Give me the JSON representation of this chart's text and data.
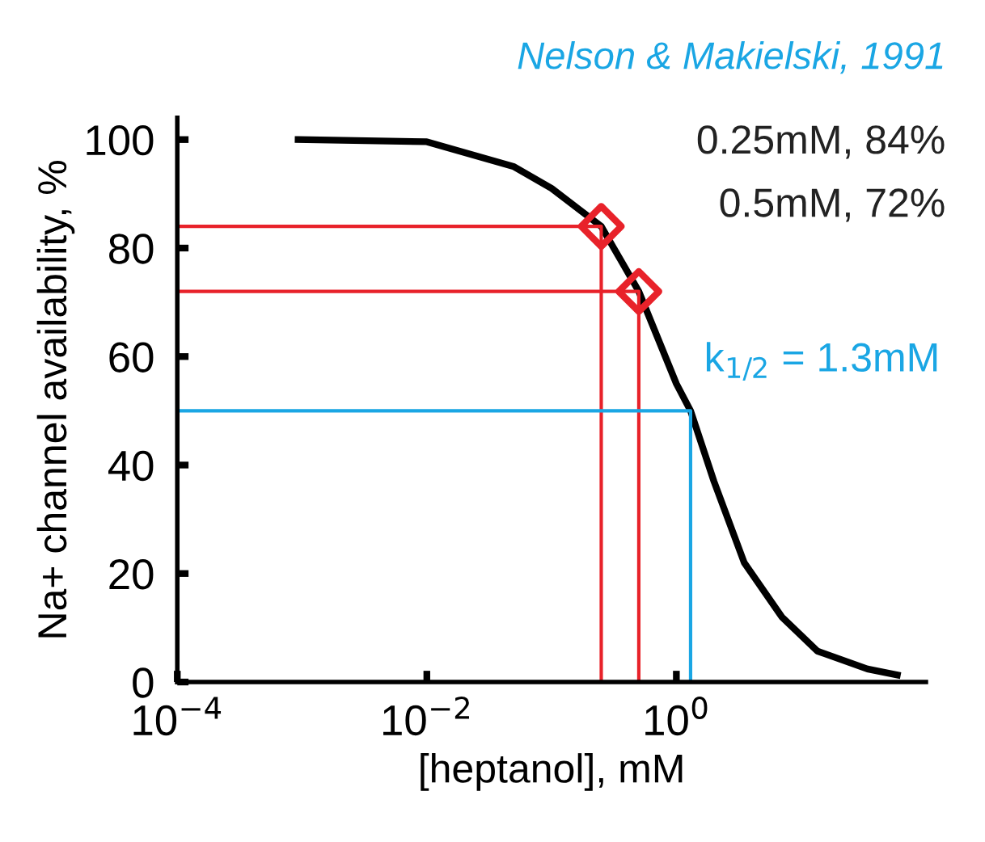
{
  "chart_data": {
    "type": "line",
    "xlabel": "[heptanol], mM",
    "ylabel": "Na+ channel availability, %",
    "log": "x",
    "xlim": [
      0.0001,
      100
    ],
    "ylim": [
      0,
      104
    ],
    "xticks": [
      {
        "value": 0.0001,
        "label": "10$^{−4}$"
      },
      {
        "value": 0.01,
        "label": "10$^{−2}$"
      },
      {
        "value": 1,
        "label": "10$^{0}$"
      }
    ],
    "yticks": [
      0,
      20,
      40,
      60,
      80,
      100
    ],
    "grid": false,
    "series": [
      {
        "color": "#000000",
        "x": [
          0.00093,
          0.01,
          0.05,
          0.1,
          0.25,
          0.5,
          1,
          1.3,
          2,
          3.5,
          7,
          13.5,
          34,
          59
        ],
        "values": [
          100,
          99.6,
          95,
          91,
          84,
          72,
          55,
          50,
          37,
          22,
          12,
          5.7,
          2.4,
          1.3
        ]
      },
      {
        "color": "#e8222a",
        "x": [
          0.25,
          0.25,
          0.0001
        ],
        "values": [
          0,
          84,
          84
        ]
      },
      {
        "color": "#e8222a",
        "x": [
          0.5,
          0.5,
          0.0001
        ],
        "values": [
          0,
          72,
          72
        ]
      },
      {
        "color": "#1aa6e4",
        "x": [
          0.0001,
          1.3,
          1.3
        ],
        "values": [
          50,
          50,
          0
        ]
      },
      {
        "type": "scatter",
        "marker": "diamond",
        "color": "#e8222a",
        "x": [
          0.25,
          0.5
        ],
        "values": [
          84,
          72
        ]
      }
    ],
    "annotations": [
      "Nelson & Makielski, 1991",
      "0.25mM, 84%",
      "0.5mM, 72%",
      {
        "text": "k$_{1/2}$ = 1.3mM",
        "x": 1.3,
        "y": 50
      }
    ]
  }
}
